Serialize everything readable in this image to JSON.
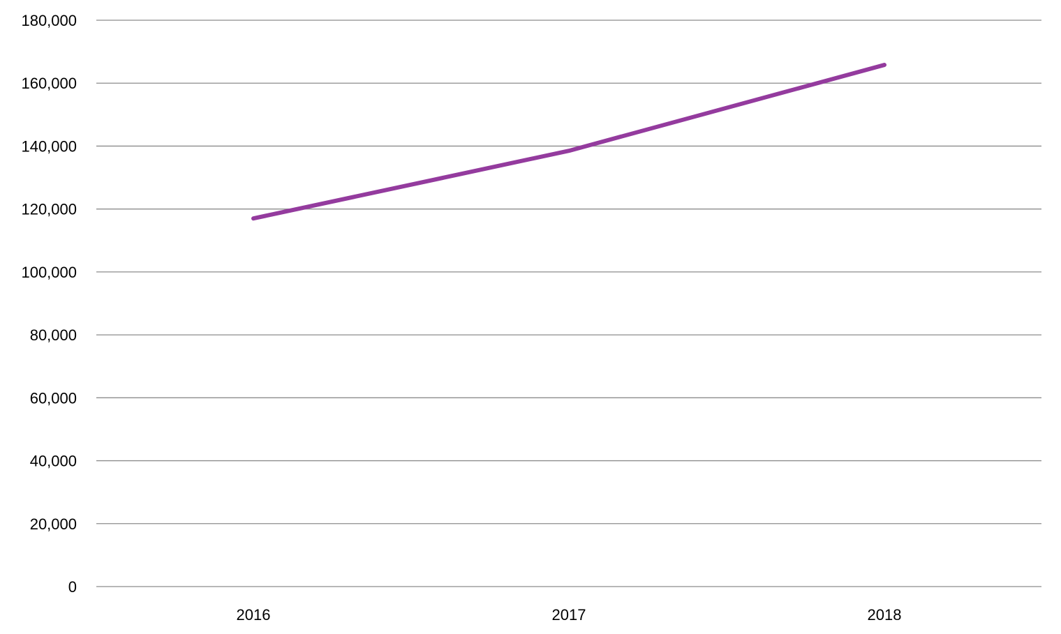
{
  "chart_data": {
    "type": "line",
    "title": "",
    "xlabel": "",
    "ylabel": "",
    "categories": [
      "2016",
      "2017",
      "2018"
    ],
    "series": [
      {
        "values": [
          117000,
          138500,
          165800
        ],
        "color": "#943b9e"
      }
    ],
    "ylim": [
      0,
      180000
    ],
    "y_ticks": [
      0,
      20000,
      40000,
      60000,
      80000,
      100000,
      120000,
      140000,
      160000,
      180000
    ],
    "y_tick_labels": [
      "0",
      "20,000",
      "40,000",
      "60,000",
      "80,000",
      "100,000",
      "120,000",
      "140,000",
      "160,000",
      "180,000"
    ],
    "grid": true,
    "legend": "none",
    "grid_color": "#8c8c8c"
  }
}
